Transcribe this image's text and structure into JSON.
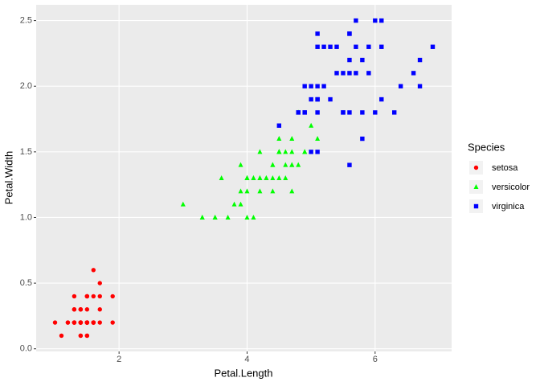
{
  "chart_data": {
    "type": "scatter",
    "x_label": "Petal.Length",
    "y_label": "Petal.Width",
    "legend_title": "Species",
    "legend_position": "right",
    "grid": true,
    "xlim": [
      0.705,
      7.195
    ],
    "xticks": [
      2,
      4,
      6
    ],
    "ylim": [
      -0.02,
      2.62
    ],
    "yticks": [
      {
        "value": 0,
        "label": "0.0"
      },
      0.5,
      {
        "value": 1,
        "label": "1.0"
      },
      1.5,
      {
        "value": 2,
        "label": "2.0"
      },
      2.5
    ],
    "series": [
      {
        "name": "setosa",
        "color": "#ff0000",
        "shape": "circle",
        "x": [
          1.4,
          1.4,
          1.3,
          1.5,
          1.4,
          1.7,
          1.4,
          1.5,
          1.4,
          1.5,
          1.5,
          1.6,
          1.4,
          1.1,
          1.2,
          1.5,
          1.3,
          1.4,
          1.7,
          1.5,
          1.7,
          1.5,
          1.0,
          1.7,
          1.9,
          1.6,
          1.6,
          1.5,
          1.4,
          1.6,
          1.6,
          1.5,
          1.5,
          1.4,
          1.5,
          1.2,
          1.3,
          1.4,
          1.3,
          1.5,
          1.3,
          1.3,
          1.3,
          1.6,
          1.9,
          1.4,
          1.6,
          1.4,
          1.5,
          1.4
        ],
        "values": [
          0.2,
          0.2,
          0.2,
          0.2,
          0.2,
          0.4,
          0.3,
          0.2,
          0.2,
          0.1,
          0.2,
          0.2,
          0.1,
          0.1,
          0.2,
          0.4,
          0.4,
          0.3,
          0.3,
          0.3,
          0.2,
          0.4,
          0.2,
          0.5,
          0.2,
          0.2,
          0.4,
          0.2,
          0.2,
          0.2,
          0.2,
          0.4,
          0.1,
          0.2,
          0.2,
          0.2,
          0.2,
          0.1,
          0.2,
          0.2,
          0.3,
          0.3,
          0.2,
          0.6,
          0.4,
          0.3,
          0.2,
          0.2,
          0.2,
          0.2
        ]
      },
      {
        "name": "versicolor",
        "color": "#00ff00",
        "shape": "triangle",
        "x": [
          4.7,
          4.5,
          4.9,
          4.0,
          4.6,
          4.5,
          4.7,
          3.3,
          4.6,
          3.9,
          3.5,
          4.2,
          4.0,
          4.7,
          3.6,
          4.4,
          4.5,
          4.1,
          4.5,
          3.9,
          4.8,
          4.0,
          4.9,
          4.7,
          4.3,
          4.4,
          4.8,
          5.0,
          4.5,
          3.5,
          3.8,
          3.7,
          3.9,
          5.1,
          4.5,
          4.5,
          4.7,
          4.4,
          4.1,
          4.0,
          4.4,
          4.6,
          4.0,
          3.3,
          4.2,
          4.2,
          4.2,
          4.3,
          3.0,
          4.1
        ],
        "values": [
          1.4,
          1.5,
          1.5,
          1.3,
          1.5,
          1.3,
          1.6,
          1.0,
          1.3,
          1.4,
          1.0,
          1.5,
          1.0,
          1.4,
          1.3,
          1.4,
          1.5,
          1.0,
          1.5,
          1.1,
          1.8,
          1.3,
          1.5,
          1.2,
          1.3,
          1.4,
          1.4,
          1.7,
          1.5,
          1.0,
          1.1,
          1.0,
          1.2,
          1.6,
          1.5,
          1.6,
          1.5,
          1.3,
          1.3,
          1.3,
          1.2,
          1.4,
          1.2,
          1.0,
          1.3,
          1.2,
          1.3,
          1.3,
          1.1,
          1.3
        ]
      },
      {
        "name": "virginica",
        "color": "#0000ff",
        "shape": "square",
        "x": [
          6.0,
          5.1,
          5.9,
          5.6,
          5.8,
          6.6,
          4.5,
          6.3,
          5.8,
          6.1,
          5.1,
          5.3,
          5.5,
          5.0,
          5.1,
          5.3,
          5.5,
          6.7,
          6.9,
          5.0,
          5.7,
          4.9,
          6.7,
          4.9,
          5.7,
          6.0,
          4.8,
          4.9,
          5.6,
          5.8,
          6.1,
          6.4,
          5.6,
          5.1,
          5.6,
          6.1,
          5.6,
          5.5,
          4.8,
          5.4,
          5.6,
          5.1,
          5.1,
          5.9,
          5.7,
          5.2,
          5.0,
          5.2,
          5.4,
          5.1
        ],
        "values": [
          2.5,
          1.9,
          2.1,
          1.8,
          2.2,
          2.1,
          1.7,
          1.8,
          1.8,
          2.5,
          2.0,
          1.9,
          2.1,
          2.0,
          2.4,
          2.3,
          1.8,
          2.2,
          2.3,
          1.5,
          2.3,
          2.0,
          2.0,
          1.8,
          2.1,
          1.8,
          1.8,
          1.8,
          2.1,
          1.6,
          1.9,
          2.0,
          2.2,
          1.5,
          1.4,
          2.3,
          2.4,
          1.8,
          1.8,
          2.1,
          2.4,
          2.3,
          1.9,
          2.3,
          2.5,
          2.3,
          1.9,
          2.0,
          2.3,
          1.8
        ]
      }
    ]
  }
}
